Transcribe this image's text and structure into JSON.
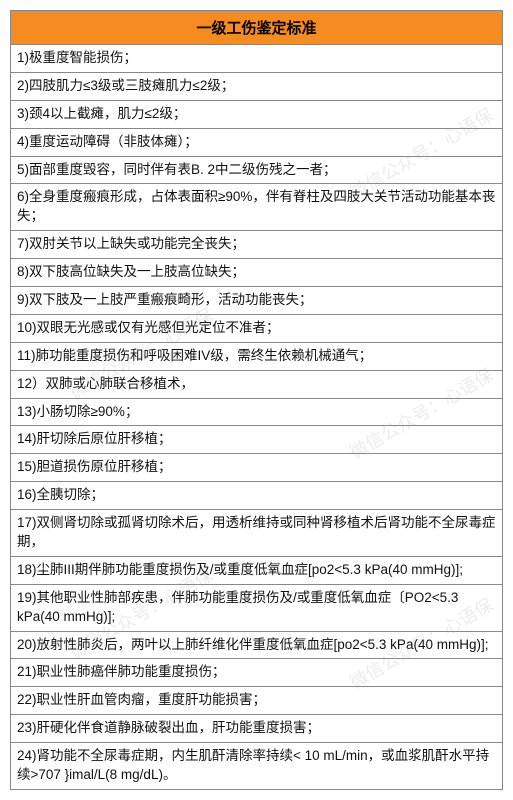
{
  "header": {
    "title": "一级工伤鉴定标准",
    "bg_color": "#f68b1f",
    "text_color": "#000000",
    "font_size": 15,
    "font_weight": "bold"
  },
  "table": {
    "border_color": "#888888",
    "row_bg": "#ffffff",
    "row_text_color": "#111111",
    "row_font_size": 13.5
  },
  "rows": [
    "1)极重度智能损伤；",
    "2)四肢肌力≤3级或三肢瘫肌力≤2级；",
    "3)颈4以上截瘫，肌力≤2级；",
    "4)重度运动障碍（非肢体瘫）；",
    "5)面部重度毁容，同时伴有表B. 2中二级伤残之一者；",
    "6)全身重度瘢痕形成，占体表面积≥90%，伴有脊柱及四肢大关节活动功能基本丧失；",
    "7)双肘关节以上缺失或功能完全丧失；",
    "8)双下肢高位缺失及一上肢高位缺失；",
    "9)双下肢及一上肢严重瘢痕畸形，活动功能丧失；",
    "10)双眼无光感或仅有光感但光定位不准者；",
    "11)肺功能重度损伤和呼吸困难IV级，需终生依赖机械通气；",
    "12）双肺或心肺联合移植术，",
    "13)小肠切除≥90%；",
    "14)肝切除后原位肝移植；",
    "15)胆道损伤原位肝移植；",
    "16)全胰切除；",
    "17)双侧肾切除或孤肾切除术后，用透析维持或同种肾移植术后肾功能不全尿毒症期，",
    "18)尘肺III期伴肺功能重度损伤及/或重度低氧血症[po2<5.3 kPa(40 mmHg)];",
    "19)其他职业性肺部疾患，伴肺功能重度损伤及/或重度低氧血症〔PO2<5.3 kPa(40 mmHg)];",
    "20)放射性肺炎后，两叶以上肺纤维化伴重度低氧血症[po2<5.3 kPa(40 mmHg)];",
    "21)职业性肺癌伴肺功能重度损伤；",
    "22)职业性肝血管肉瘤，重度肝功能损害；",
    "23)肝硬化伴食道静脉破裂出血，肝功能重度损害；",
    "24)肾功能不全尿毒症期，内生肌酐清除率持续< 10 mL/min，或血浆肌酐水平持续>707 }imal/L(8 mg/dL)。"
  ],
  "watermark": {
    "text": "微信公众号：心语保",
    "color": "rgba(150,150,150,0.18)",
    "font_size": 18,
    "rotation_deg": -30
  }
}
